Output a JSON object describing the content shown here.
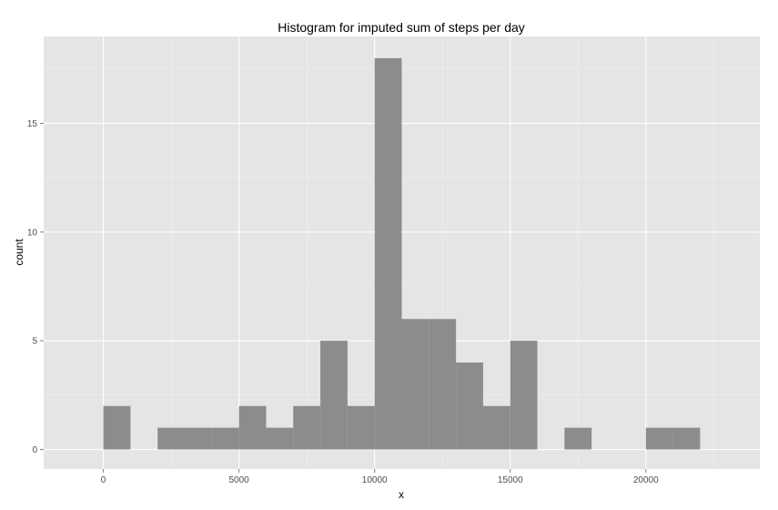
{
  "chart_data": {
    "type": "bar",
    "title": "Histogram for imputed sum of steps per day",
    "xlabel": "x",
    "ylabel": "count",
    "bin_width": 1000,
    "bins": [
      {
        "x0": 0,
        "x1": 1000,
        "count": 2
      },
      {
        "x0": 1000,
        "x1": 2000,
        "count": 0
      },
      {
        "x0": 2000,
        "x1": 3000,
        "count": 1
      },
      {
        "x0": 3000,
        "x1": 4000,
        "count": 1
      },
      {
        "x0": 4000,
        "x1": 5000,
        "count": 1
      },
      {
        "x0": 5000,
        "x1": 6000,
        "count": 2
      },
      {
        "x0": 6000,
        "x1": 7000,
        "count": 1
      },
      {
        "x0": 7000,
        "x1": 8000,
        "count": 2
      },
      {
        "x0": 8000,
        "x1": 9000,
        "count": 5
      },
      {
        "x0": 9000,
        "x1": 10000,
        "count": 2
      },
      {
        "x0": 10000,
        "x1": 11000,
        "count": 18
      },
      {
        "x0": 11000,
        "x1": 12000,
        "count": 6
      },
      {
        "x0": 12000,
        "x1": 13000,
        "count": 6
      },
      {
        "x0": 13000,
        "x1": 14000,
        "count": 4
      },
      {
        "x0": 14000,
        "x1": 15000,
        "count": 2
      },
      {
        "x0": 15000,
        "x1": 16000,
        "count": 5
      },
      {
        "x0": 16000,
        "x1": 17000,
        "count": 0
      },
      {
        "x0": 17000,
        "x1": 18000,
        "count": 1
      },
      {
        "x0": 18000,
        "x1": 19000,
        "count": 0
      },
      {
        "x0": 19000,
        "x1": 20000,
        "count": 0
      },
      {
        "x0": 20000,
        "x1": 21000,
        "count": 1
      },
      {
        "x0": 21000,
        "x1": 22000,
        "count": 1
      }
    ],
    "xlim": [
      -2200,
      24200
    ],
    "ylim": [
      -0.9,
      19
    ],
    "x_ticks": [
      0,
      5000,
      10000,
      15000,
      20000
    ],
    "x_tick_labels": [
      "0",
      "5000",
      "10000",
      "15000",
      "20000"
    ],
    "x_minor_ticks": [
      2500,
      7500,
      12500,
      17500,
      22500
    ],
    "y_ticks": [
      0,
      5,
      10,
      15
    ],
    "y_tick_labels": [
      "0",
      "5",
      "10",
      "15"
    ],
    "y_minor_ticks": [
      2.5,
      7.5,
      12.5,
      17.5
    ],
    "grid": true,
    "colors": {
      "panel_background": "#e5e5e5",
      "bar_fill": "#8c8c8c",
      "grid_major": "#ffffff",
      "grid_minor": "#f2f2f2"
    }
  }
}
